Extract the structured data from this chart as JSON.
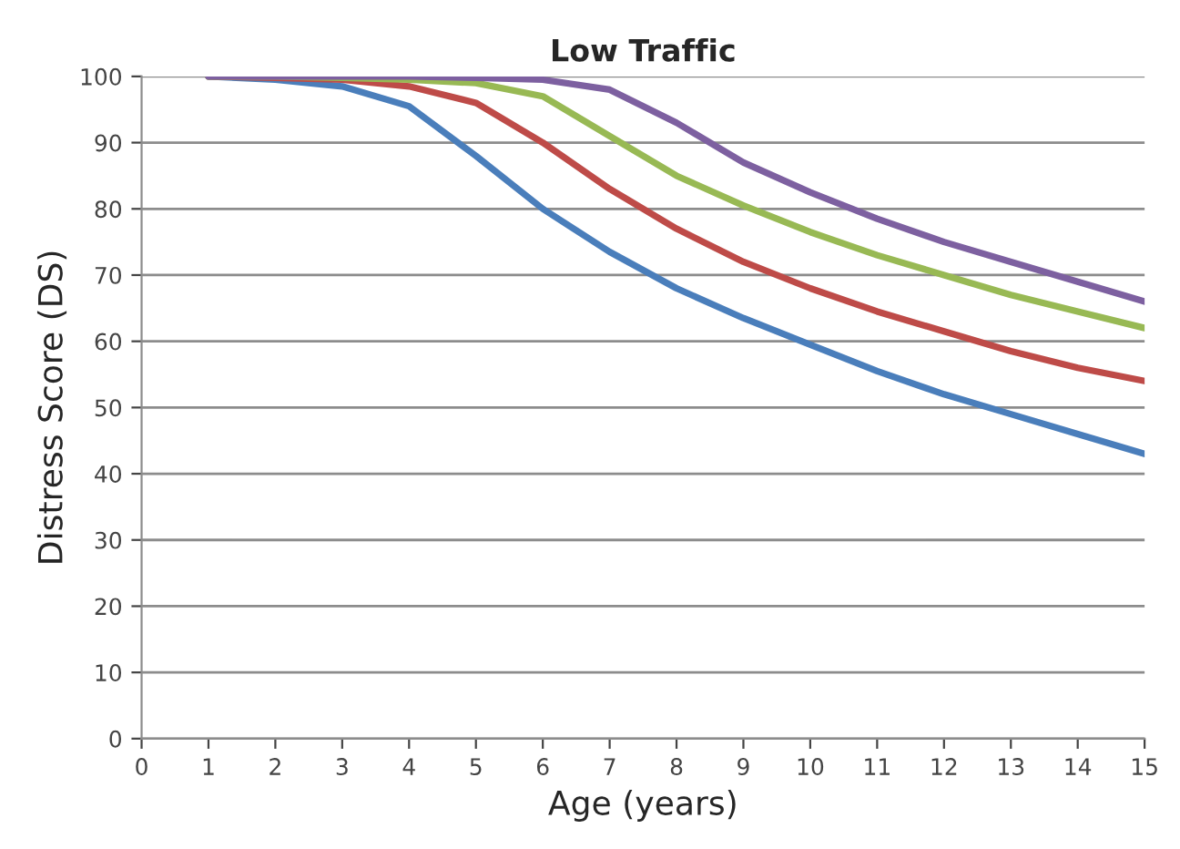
{
  "chart_data": {
    "type": "line",
    "title": "Low Traffic",
    "xlabel": "Age (years)",
    "ylabel": "Distress Score (DS)",
    "x": [
      1,
      2,
      3,
      4,
      5,
      6,
      7,
      8,
      9,
      10,
      11,
      12,
      13,
      14,
      15
    ],
    "series": [
      {
        "color": "#4a7ebb",
        "values": [
          100,
          99.5,
          98.5,
          95.5,
          88,
          80,
          73.5,
          68,
          63.5,
          59.5,
          55.5,
          52,
          49,
          46,
          43
        ]
      },
      {
        "color": "#be4b48",
        "values": [
          100,
          99.8,
          99.5,
          98.5,
          96,
          90,
          83,
          77,
          72,
          68,
          64.5,
          61.5,
          58.5,
          56,
          54
        ]
      },
      {
        "color": "#98b954",
        "values": [
          100,
          100,
          99.8,
          99.5,
          99,
          97,
          91,
          85,
          80.5,
          76.5,
          73,
          70,
          67,
          64.5,
          62
        ]
      },
      {
        "color": "#7d60a0",
        "values": [
          100,
          100,
          100,
          100,
          99.8,
          99.5,
          98,
          93,
          87,
          82.5,
          78.5,
          75,
          72,
          69,
          66
        ]
      }
    ],
    "xlim": [
      0,
      15
    ],
    "xticks": [
      0,
      1,
      2,
      3,
      4,
      5,
      6,
      7,
      8,
      9,
      10,
      11,
      12,
      13,
      14,
      15
    ],
    "ylim": [
      0,
      100
    ],
    "yticks": [
      0,
      10,
      20,
      30,
      40,
      50,
      60,
      70,
      80,
      90,
      100
    ],
    "grid": "y",
    "marker": "none",
    "line_style": "solid"
  }
}
